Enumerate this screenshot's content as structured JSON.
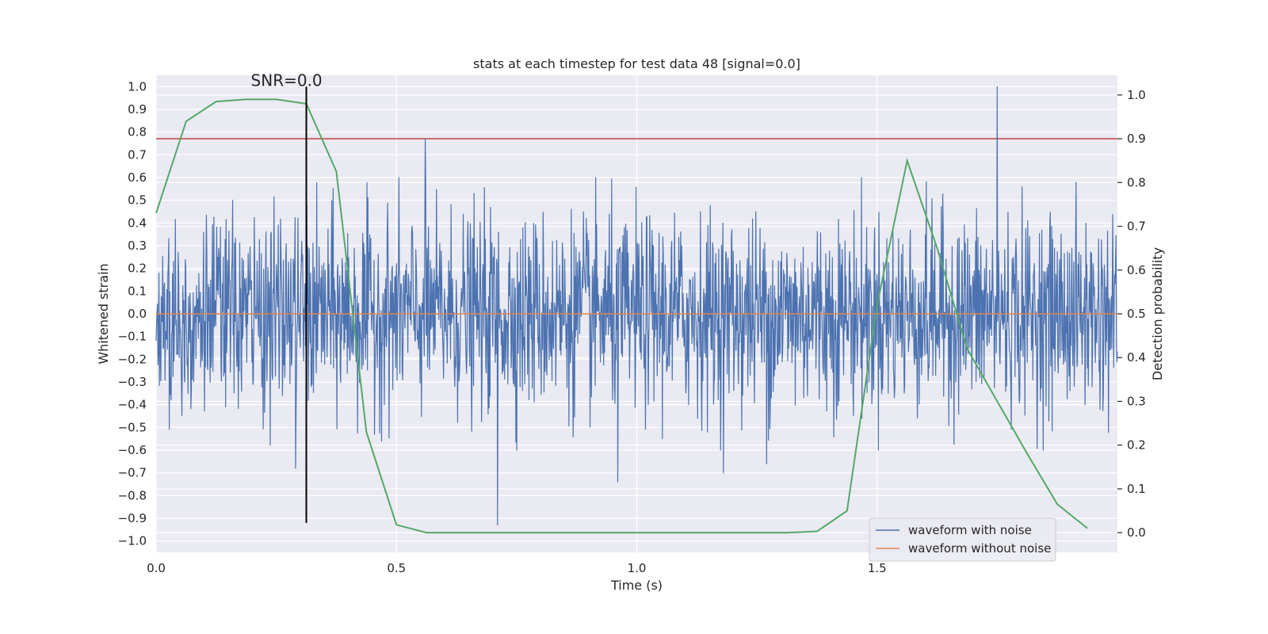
{
  "chart_data": {
    "type": "line",
    "title": "stats at each timestep for test data 48 [signal=0.0]",
    "xlabel": "Time (s)",
    "ylabel_left": "Whitened strain",
    "ylabel_right": "Detection probability",
    "annotation": "SNR=0.0",
    "xlim": [
      0.0,
      2.0
    ],
    "ylim_left": [
      -1.05,
      1.05
    ],
    "ylim_right": [
      -0.045,
      1.045
    ],
    "x_ticks": [
      0.0,
      0.5,
      1.0,
      1.5
    ],
    "x_tick_labels": [
      "0.0",
      "0.5",
      "1.0",
      "1.5"
    ],
    "y_left_ticks": [
      1.0,
      0.9,
      0.8,
      0.7,
      0.6,
      0.5,
      0.4,
      0.3,
      0.2,
      0.1,
      0.0,
      -0.1,
      -0.2,
      -0.3,
      -0.4,
      -0.5,
      -0.6,
      -0.7,
      -0.8,
      -0.9,
      -1.0
    ],
    "y_left_tick_labels": [
      "1.0",
      "0.9",
      "0.8",
      "0.7",
      "0.6",
      "0.5",
      "0.4",
      "0.3",
      "0.2",
      "0.1",
      "0.0",
      "−0.1",
      "−0.2",
      "−0.3",
      "−0.4",
      "−0.5",
      "−0.6",
      "−0.7",
      "−0.8",
      "−0.9",
      "−1.0"
    ],
    "y_right_ticks": [
      1.0,
      0.9,
      0.8,
      0.7,
      0.6,
      0.5,
      0.4,
      0.3,
      0.2,
      0.1,
      0.0
    ],
    "y_right_tick_labels": [
      "1.0",
      "0.9",
      "0.8",
      "0.7",
      "0.6",
      "0.5",
      "0.4",
      "0.3",
      "0.2",
      "0.1",
      "0.0"
    ],
    "grid": true,
    "legend_position": "lower-right",
    "series": [
      {
        "name": "waveform with noise",
        "color": "#4c72b0",
        "axis": "left",
        "x_range": [
          0.0,
          2.0
        ],
        "notable_peaks": [
          {
            "x": 0.56,
            "y": 0.77
          },
          {
            "x": 0.71,
            "y": -0.93
          },
          {
            "x": 0.96,
            "y": -0.74
          },
          {
            "x": 1.75,
            "y": 1.0
          },
          {
            "x": 1.18,
            "y": -0.7
          },
          {
            "x": 1.27,
            "y": -0.66
          },
          {
            "x": 0.29,
            "y": -0.68
          }
        ],
        "typical_amplitude": 0.25
      },
      {
        "name": "waveform without noise",
        "color": "#dd8452",
        "axis": "left",
        "x": [
          0.0,
          2.0
        ],
        "y": [
          0.0,
          0.0
        ]
      },
      {
        "color": "#55a868",
        "axis": "right",
        "x": [
          0.0,
          0.0625,
          0.125,
          0.1875,
          0.25,
          0.3125,
          0.375,
          0.4375,
          0.5,
          0.5625,
          0.625,
          0.6875,
          0.75,
          0.8125,
          0.875,
          0.9375,
          1.0,
          1.0625,
          1.125,
          1.1875,
          1.25,
          1.3125,
          1.375,
          1.4375,
          1.5,
          1.5625,
          1.625,
          1.6875,
          1.75,
          1.8125,
          1.875,
          1.9375
        ],
        "y": [
          0.73,
          0.94,
          0.985,
          0.99,
          0.99,
          0.98,
          0.825,
          0.23,
          0.018,
          0.0,
          0.0,
          0.0,
          0.0,
          0.0,
          0.0,
          0.0,
          0.0,
          0.0,
          0.0,
          0.0,
          0.0,
          0.0,
          0.003,
          0.05,
          0.52,
          0.85,
          0.65,
          0.42,
          0.3,
          0.18,
          0.065,
          0.01
        ]
      }
    ],
    "threshold": {
      "axis": "right",
      "y": 0.9,
      "color": "#c44e52"
    },
    "marker_line": {
      "x": 0.3125,
      "y_from": -0.92,
      "y_to": 1.0,
      "color": "#000000"
    },
    "legend": [
      {
        "label": "waveform with noise",
        "color": "#4c72b0"
      },
      {
        "label": "waveform without noise",
        "color": "#dd8452"
      }
    ]
  }
}
